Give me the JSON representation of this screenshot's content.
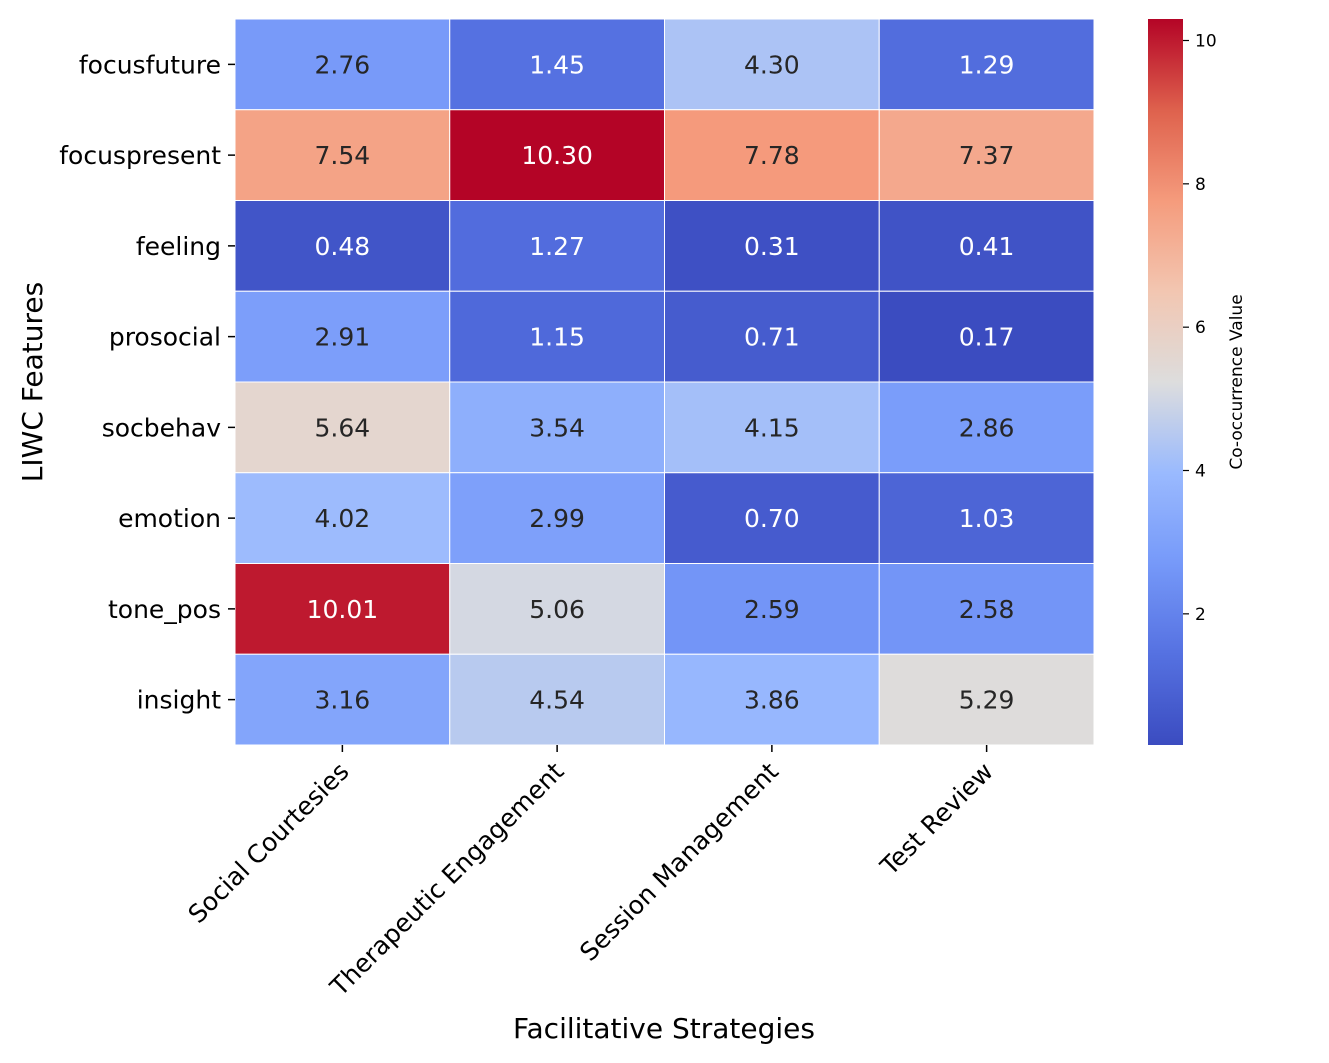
{
  "chart_data": {
    "type": "heatmap",
    "title": "",
    "xlabel": "Facilitative Strategies",
    "ylabel": "LIWC Features",
    "columns": [
      "Social Courtesies",
      "Therapeutic Engagement",
      "Session Management",
      "Test Review"
    ],
    "rows": [
      "focusfuture",
      "focuspresent",
      "feeling",
      "prosocial",
      "socbehav",
      "emotion",
      "tone_pos",
      "insight"
    ],
    "values": [
      [
        2.76,
        1.45,
        4.3,
        1.29
      ],
      [
        7.54,
        10.3,
        7.78,
        7.37
      ],
      [
        0.48,
        1.27,
        0.31,
        0.41
      ],
      [
        2.91,
        1.15,
        0.71,
        0.17
      ],
      [
        5.64,
        3.54,
        4.15,
        2.86
      ],
      [
        4.02,
        2.99,
        0.7,
        1.03
      ],
      [
        10.01,
        5.06,
        2.59,
        2.58
      ],
      [
        3.16,
        4.54,
        3.86,
        5.29
      ]
    ],
    "value_labels": [
      [
        "2.76",
        "1.45",
        "4.30",
        "1.29"
      ],
      [
        "7.54",
        "10.30",
        "7.78",
        "7.37"
      ],
      [
        "0.48",
        "1.27",
        "0.31",
        "0.41"
      ],
      [
        "2.91",
        "1.15",
        "0.71",
        "0.17"
      ],
      [
        "5.64",
        "3.54",
        "4.15",
        "2.86"
      ],
      [
        "4.02",
        "2.99",
        "0.70",
        "1.03"
      ],
      [
        "10.01",
        "5.06",
        "2.59",
        "2.58"
      ],
      [
        "3.16",
        "4.54",
        "3.86",
        "5.29"
      ]
    ],
    "colormap": "coolwarm",
    "vmin": 0.17,
    "vmax": 10.3,
    "colorbar": {
      "label": "Co-occurrence Value",
      "ticks": [
        2,
        4,
        6,
        8,
        10
      ],
      "tick_labels": [
        "2",
        "4",
        "6",
        "8",
        "10"
      ]
    }
  }
}
